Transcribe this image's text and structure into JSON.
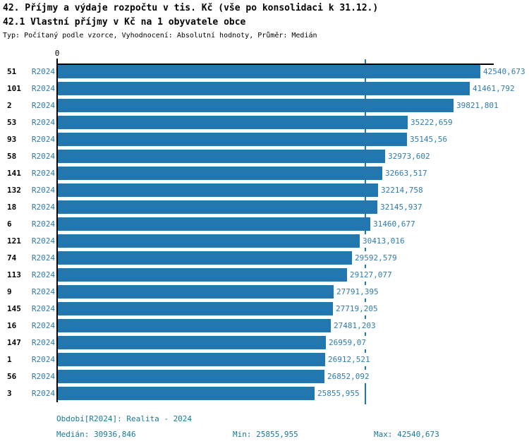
{
  "header": {
    "title": "42. Příjmy a výdaje rozpočtu v tis. Kč (vše po konsolidaci k 31.12.)",
    "subtitle": "42.1 Vlastní příjmy v Kč na 1 obyvatele obce",
    "meta": "Typ: Počítaný podle vzorce, Vyhodnocení: Absolutní hodnoty, Průměr: Medián"
  },
  "chart_data": {
    "type": "bar",
    "orientation": "horizontal",
    "title": "42.1 Vlastní příjmy v Kč na 1 obyvatele obce",
    "axis_zero_label": "0",
    "series_label": "R2024",
    "categories": [
      "51",
      "101",
      "2",
      "53",
      "93",
      "58",
      "141",
      "132",
      "18",
      "6",
      "121",
      "74",
      "113",
      "9",
      "145",
      "16",
      "147",
      "1",
      "56",
      "3"
    ],
    "values": [
      42540.673,
      41461.792,
      39821.801,
      35222.659,
      35145.56,
      32973.602,
      32663.517,
      32214.758,
      32145.937,
      31460.677,
      30413.016,
      29592.579,
      29127.077,
      27791.395,
      27719.205,
      27481.203,
      26959.07,
      26912.521,
      26852.092,
      25855.955
    ],
    "value_labels": [
      "42540,673",
      "41461,792",
      "39821,801",
      "35222,659",
      "35145,56",
      "32973,602",
      "32663,517",
      "32214,758",
      "32145,937",
      "31460,677",
      "30413,016",
      "29592,579",
      "29127,077",
      "27791,395",
      "27719,205",
      "27481,203",
      "26959,07",
      "26912,521",
      "26852,092",
      "25855,955"
    ],
    "median": 30936.846,
    "xlim": [
      0,
      43900
    ],
    "grid": false,
    "legend": "none",
    "colors": {
      "bar": "#2377b0",
      "median_line": "#2377b0",
      "label_text": "#2e7cb0",
      "footer_text": "#17799b",
      "axis": "#000000",
      "heading_text": "#000000"
    }
  },
  "footer": {
    "period": "Období[R2024]: Realita - 2024",
    "median": "Medián: 30936,846",
    "min": "Min: 25855,955",
    "max": "Max: 42540,673"
  }
}
